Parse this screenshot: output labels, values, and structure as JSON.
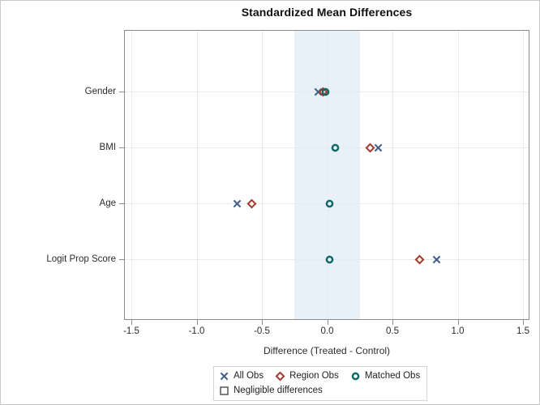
{
  "title": "Standardized Mean Differences",
  "chart_data": {
    "type": "scatter",
    "title": "Standardized Mean Differences",
    "xlabel": "Difference (Treated - Control)",
    "xlim": [
      -1.55,
      1.55
    ],
    "x_ticks": [
      -1.5,
      -1.0,
      -0.5,
      0.0,
      0.5,
      1.0,
      1.5
    ],
    "x_tick_labels": [
      "-1.5",
      "-1.0",
      "-0.5",
      "0.0",
      "0.5",
      "1.0",
      "1.5"
    ],
    "categories": [
      "Gender",
      "BMI",
      "Age",
      "Logit Prop Score"
    ],
    "series": [
      {
        "name": "All Obs",
        "marker": "x",
        "color": "#44618e",
        "values": [
          -0.07,
          0.39,
          -0.69,
          0.84
        ]
      },
      {
        "name": "Region Obs",
        "marker": "diamond",
        "color": "#a23a2e",
        "values": [
          -0.03,
          0.33,
          -0.58,
          0.71
        ]
      },
      {
        "name": "Matched Obs",
        "marker": "circle",
        "color": "#0d6a66",
        "values": [
          -0.01,
          0.06,
          0.02,
          0.02
        ]
      }
    ],
    "band": {
      "label": "Negligible differences",
      "from": -0.25,
      "to": 0.25,
      "color": "#e8f0f8",
      "swatch_border": "#4a4a4a"
    },
    "grid": true,
    "legend_position": "bottom"
  }
}
